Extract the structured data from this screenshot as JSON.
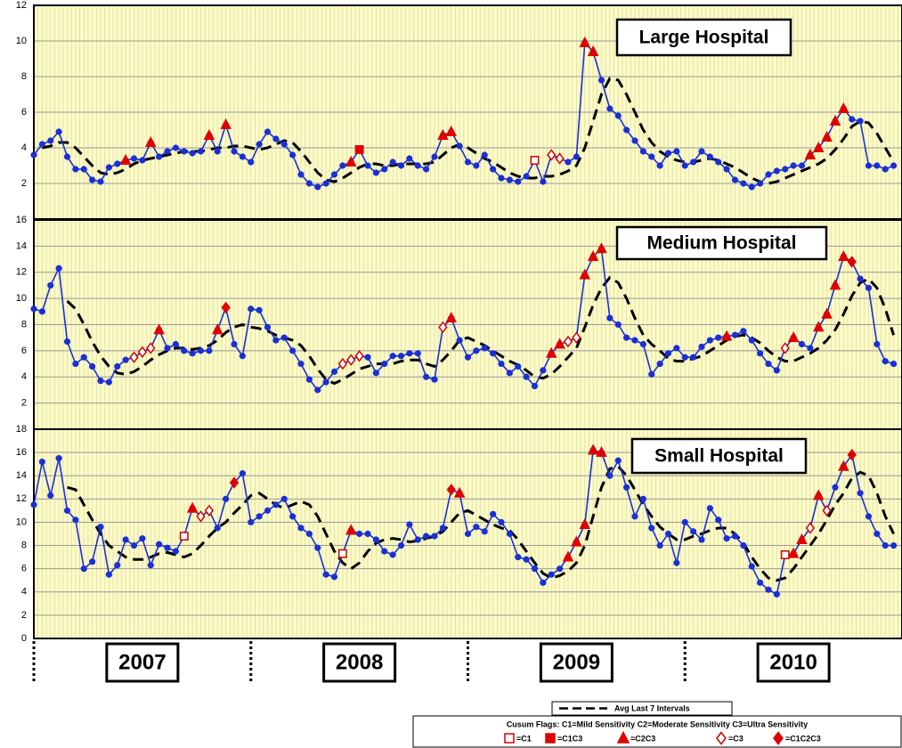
{
  "chart_data": {
    "type": "line",
    "x": [
      0,
      2,
      4,
      6,
      8,
      10,
      12,
      14,
      16,
      18,
      20,
      22,
      24,
      26,
      28,
      30,
      32,
      34,
      36,
      38,
      40,
      42,
      44,
      46,
      48,
      50,
      52,
      54,
      56,
      58,
      60,
      62,
      64,
      66,
      68,
      70,
      72,
      74,
      76,
      78,
      80,
      82,
      84,
      86,
      88,
      90,
      92,
      94,
      96,
      98,
      100,
      102,
      104,
      106,
      108,
      110,
      112,
      114,
      116,
      118,
      120,
      122,
      124,
      126,
      128,
      130,
      132,
      134,
      136,
      138,
      140,
      142,
      144,
      146,
      148,
      150,
      152,
      154,
      156,
      158,
      160,
      162,
      164,
      166,
      168,
      170,
      172,
      174,
      176,
      178,
      180,
      182,
      184,
      186,
      188,
      190,
      192,
      194,
      196,
      198,
      200,
      202,
      204,
      206
    ],
    "xlim": [
      0,
      208
    ],
    "year_bounds": [
      0,
      52,
      104,
      156
    ],
    "xticks": [
      {
        "value": 26,
        "label": "2007"
      },
      {
        "value": 78,
        "label": "2008"
      },
      {
        "value": 130,
        "label": "2009"
      },
      {
        "value": 182,
        "label": "2010"
      }
    ],
    "grid": true,
    "panels": [
      {
        "title": "Large Hospital",
        "ylim": [
          0,
          12
        ],
        "yticks": [
          2,
          4,
          6,
          8,
          10,
          12
        ],
        "series": [
          {
            "color": "#1a2fd4",
            "values": [
              3.6,
              4.2,
              4.4,
              4.9,
              3.5,
              2.8,
              2.8,
              2.2,
              2.1,
              2.9,
              3.1,
              3.3,
              3.4,
              3.3,
              4.3,
              3.5,
              3.8,
              4.0,
              3.8,
              3.7,
              3.8,
              4.7,
              3.8,
              5.3,
              3.8,
              3.5,
              3.2,
              4.2,
              4.9,
              4.5,
              4.2,
              3.6,
              2.5,
              2.0,
              1.8,
              2.0,
              2.5,
              3.0,
              3.2,
              3.9,
              3.0,
              2.6,
              2.8,
              3.2,
              3.0,
              3.4,
              3.0,
              2.8,
              3.5,
              4.7,
              4.9,
              4.1,
              3.2,
              3.0,
              3.6,
              2.8,
              2.3,
              2.2,
              2.1,
              2.4,
              3.3,
              2.1,
              3.6,
              3.4,
              3.2,
              3.5,
              9.9,
              9.4,
              7.8,
              6.2,
              5.8,
              5.0,
              4.4,
              3.8,
              3.5,
              3.0,
              3.7,
              3.8,
              3.0,
              3.2,
              3.8,
              3.5,
              3.2,
              2.8,
              2.2,
              2.0,
              1.8,
              2.0,
              2.5,
              2.7,
              2.8,
              3.0,
              3.0,
              3.6,
              4.0,
              4.6,
              5.5,
              6.2,
              5.6,
              5.5,
              3.0,
              3.0,
              2.8,
              3.0
            ]
          },
          {
            "color": "#000000",
            "dashed": true,
            "values": [
              null,
              4.0,
              4.1,
              4.3,
              4.3,
              4.0,
              3.5,
              3.0,
              2.6,
              2.5,
              2.6,
              2.8,
              3.1,
              3.3,
              3.4,
              3.5,
              3.6,
              3.7,
              3.8,
              3.8,
              3.8,
              3.9,
              4.0,
              4.0,
              4.1,
              4.1,
              4.0,
              3.9,
              4.0,
              4.2,
              4.4,
              4.3,
              3.8,
              3.2,
              2.6,
              2.2,
              2.1,
              2.3,
              2.6,
              2.9,
              3.1,
              3.1,
              3.0,
              3.0,
              3.1,
              3.1,
              3.1,
              3.1,
              3.2,
              3.6,
              4.0,
              4.2,
              4.0,
              3.7,
              3.4,
              3.2,
              2.9,
              2.6,
              2.4,
              2.3,
              2.3,
              2.4,
              2.4,
              2.5,
              2.7,
              3.0,
              4.0,
              5.5,
              7.0,
              7.9,
              7.8,
              7.0,
              6.0,
              5.0,
              4.3,
              3.8,
              3.5,
              3.3,
              3.2,
              3.2,
              3.3,
              3.4,
              3.3,
              3.1,
              2.9,
              2.6,
              2.3,
              2.1,
              2.0,
              2.1,
              2.3,
              2.5,
              2.7,
              2.9,
              3.1,
              3.4,
              3.9,
              4.5,
              5.2,
              5.5,
              5.4,
              4.8,
              4.0,
              3.2
            ]
          }
        ],
        "flags": [
          [
            120
          ],
          [
            78
          ],
          [
            22,
            28,
            42,
            46,
            76,
            98,
            100,
            132,
            134,
            186,
            188,
            190,
            192,
            194
          ],
          [
            124,
            126
          ],
          []
        ]
      },
      {
        "title": "Medium Hospital",
        "ylim": [
          0,
          16
        ],
        "yticks": [
          2,
          4,
          6,
          8,
          10,
          12,
          14,
          16
        ],
        "series": [
          {
            "color": "#1a2fd4",
            "values": [
              9.2,
              9.0,
              11.0,
              12.3,
              6.7,
              5.0,
              5.5,
              4.8,
              3.7,
              3.6,
              4.8,
              5.3,
              5.5,
              5.9,
              6.2,
              7.6,
              6.2,
              6.5,
              6.0,
              5.8,
              6.0,
              6.0,
              7.6,
              9.3,
              6.5,
              5.6,
              9.2,
              9.1,
              7.8,
              6.8,
              7.0,
              6.0,
              5.0,
              3.8,
              3.0,
              3.6,
              4.4,
              5.0,
              5.3,
              5.6,
              5.5,
              4.3,
              5.0,
              5.6,
              5.6,
              5.8,
              5.8,
              4.0,
              3.8,
              7.8,
              8.5,
              6.8,
              5.5,
              6.0,
              6.2,
              5.8,
              5.0,
              4.3,
              4.8,
              4.0,
              3.3,
              4.5,
              5.8,
              6.5,
              6.7,
              7.0,
              11.8,
              13.2,
              13.8,
              8.5,
              8.0,
              7.0,
              6.8,
              6.5,
              4.2,
              5.0,
              5.8,
              6.2,
              5.5,
              5.5,
              6.3,
              6.8,
              7.0,
              7.1,
              7.2,
              7.5,
              6.8,
              5.8,
              5.0,
              4.5,
              6.2,
              7.0,
              6.5,
              6.2,
              7.8,
              8.8,
              11.0,
              13.2,
              12.8,
              11.5,
              10.8,
              6.5,
              5.2,
              5.0
            ]
          },
          {
            "color": "#000000",
            "dashed": true,
            "values": [
              null,
              null,
              null,
              null,
              9.8,
              9.2,
              8.0,
              6.7,
              5.6,
              4.8,
              4.3,
              4.2,
              4.4,
              4.8,
              5.3,
              5.7,
              6.0,
              6.2,
              6.2,
              6.1,
              6.2,
              6.4,
              6.8,
              7.4,
              7.8,
              8.0,
              7.8,
              7.7,
              7.5,
              7.2,
              7.0,
              6.8,
              6.4,
              5.6,
              4.6,
              3.8,
              3.5,
              3.8,
              4.2,
              4.6,
              4.8,
              5.0,
              5.0,
              5.0,
              5.2,
              5.3,
              5.3,
              5.0,
              4.8,
              5.3,
              6.0,
              6.8,
              7.0,
              6.7,
              6.4,
              6.0,
              5.6,
              5.2,
              4.9,
              4.5,
              4.0,
              3.9,
              4.2,
              4.8,
              5.5,
              6.2,
              7.8,
              9.5,
              10.8,
              11.6,
              11.2,
              10.0,
              8.5,
              7.2,
              6.5,
              6.0,
              5.4,
              5.2,
              5.2,
              5.4,
              5.6,
              6.0,
              6.4,
              6.8,
              7.1,
              7.2,
              7.0,
              6.6,
              6.0,
              5.5,
              5.2,
              5.2,
              5.5,
              5.8,
              6.2,
              6.8,
              7.6,
              8.8,
              10.2,
              11.2,
              11.5,
              10.8,
              9.2,
              7.2
            ]
          }
        ],
        "flags": [
          [],
          [],
          [
            30,
            44,
            100,
            124,
            126,
            132,
            134,
            136,
            166,
            182,
            188,
            190,
            192,
            194
          ],
          [
            24,
            26,
            28,
            74,
            76,
            78,
            98,
            128,
            130,
            180
          ],
          [
            46,
            196
          ]
        ]
      },
      {
        "title": "Small Hospital",
        "ylim": [
          0,
          18
        ],
        "yticks": [
          0,
          2,
          4,
          6,
          8,
          10,
          12,
          14,
          16,
          18
        ],
        "series": [
          {
            "color": "#1a2fd4",
            "values": [
              11.5,
              15.2,
              12.3,
              15.5,
              11.0,
              10.2,
              6.0,
              6.6,
              9.6,
              5.5,
              6.3,
              8.5,
              8.0,
              8.6,
              6.3,
              8.1,
              7.8,
              7.5,
              8.8,
              11.2,
              10.5,
              11.0,
              9.5,
              12.0,
              13.4,
              14.2,
              10.0,
              10.5,
              11.0,
              11.5,
              12.0,
              10.5,
              9.5,
              9.0,
              7.8,
              5.5,
              5.3,
              7.3,
              9.3,
              9.0,
              9.0,
              8.5,
              7.5,
              7.2,
              8.0,
              9.8,
              8.5,
              8.8,
              8.8,
              9.5,
              12.8,
              12.5,
              9.0,
              9.6,
              9.2,
              10.7,
              10.0,
              9.0,
              7.0,
              6.8,
              6.0,
              4.8,
              5.5,
              6.0,
              7.0,
              8.3,
              9.8,
              16.2,
              16.0,
              14.0,
              15.3,
              13.0,
              10.5,
              12.0,
              9.5,
              8.0,
              9.0,
              6.5,
              10.0,
              9.2,
              8.5,
              11.2,
              10.2,
              8.6,
              8.8,
              8.0,
              6.2,
              4.8,
              4.2,
              3.8,
              7.2,
              7.3,
              8.5,
              9.5,
              12.3,
              11.0,
              13.0,
              14.8,
              15.8,
              12.5,
              10.5,
              9.0,
              8.0,
              8.0
            ]
          },
          {
            "color": "#000000",
            "dashed": true,
            "values": [
              null,
              null,
              null,
              null,
              13.0,
              12.8,
              11.5,
              10.2,
              9.0,
              8.0,
              7.5,
              7.0,
              6.8,
              6.8,
              7.0,
              7.3,
              7.4,
              7.2,
              7.0,
              7.3,
              8.0,
              8.8,
              9.5,
              10.0,
              10.8,
              11.5,
              12.3,
              12.5,
              12.0,
              11.5,
              11.2,
              11.5,
              11.8,
              11.5,
              10.5,
              9.0,
              7.5,
              6.5,
              6.0,
              6.5,
              7.5,
              8.2,
              8.5,
              8.6,
              8.5,
              8.3,
              8.4,
              8.6,
              8.8,
              9.2,
              10.0,
              10.8,
              11.0,
              10.6,
              10.2,
              9.8,
              9.5,
              9.3,
              8.5,
              7.5,
              6.5,
              5.6,
              5.2,
              5.4,
              5.8,
              6.5,
              8.0,
              10.5,
              13.0,
              14.6,
              14.8,
              14.0,
              12.8,
              11.5,
              10.5,
              9.6,
              9.0,
              8.5,
              8.5,
              8.8,
              9.0,
              9.3,
              9.5,
              9.5,
              9.0,
              8.2,
              7.0,
              6.0,
              5.2,
              5.0,
              5.2,
              6.0,
              7.0,
              8.0,
              9.0,
              10.2,
              11.5,
              12.5,
              13.8,
              14.3,
              14.0,
              12.5,
              10.5,
              9.0
            ]
          }
        ],
        "flags": [
          [
            36,
            74,
            180
          ],
          [],
          [
            38,
            76,
            102,
            128,
            130,
            132,
            134,
            136,
            182,
            184,
            188,
            194
          ],
          [
            40,
            42,
            186,
            190
          ],
          [
            48,
            100,
            196
          ]
        ]
      }
    ],
    "legend": {
      "avg_label": "Avg Last 7 Intervals",
      "flags_title": "Cusum Flags:  C1=Mild Sensitivity  C2=Moderate Sensitivity  C3=Ultra Sensitivity",
      "flag_kinds": [
        {
          "label": "=C1",
          "shape": "square",
          "fill": "#ffffff",
          "stroke": "#d40000"
        },
        {
          "label": "=C1C3",
          "shape": "square",
          "fill": "#e00000",
          "stroke": "#e00000"
        },
        {
          "label": "=C2C3",
          "shape": "triangle",
          "fill": "#e00000",
          "stroke": "#e00000"
        },
        {
          "label": "=C3",
          "shape": "diamond",
          "fill": "#ffffff",
          "stroke": "#d40000"
        },
        {
          "label": "=C1C2C3",
          "shape": "diamond",
          "fill": "#e00000",
          "stroke": "#e00000"
        }
      ]
    }
  }
}
